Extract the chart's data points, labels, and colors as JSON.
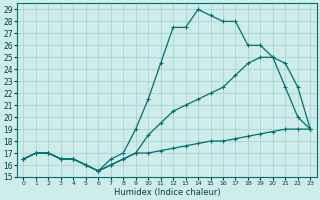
{
  "title": "",
  "xlabel": "Humidex (Indice chaleur)",
  "bg_color": "#ceecea",
  "grid_color": "#aad4d0",
  "line_color": "#007070",
  "xlim": [
    -0.5,
    23.5
  ],
  "ylim": [
    15,
    29.5
  ],
  "xticks": [
    0,
    1,
    2,
    3,
    4,
    5,
    6,
    7,
    8,
    9,
    10,
    11,
    12,
    13,
    14,
    15,
    16,
    17,
    18,
    19,
    20,
    21,
    22,
    23
  ],
  "yticks": [
    15,
    16,
    17,
    18,
    19,
    20,
    21,
    22,
    23,
    24,
    25,
    26,
    27,
    28,
    29
  ],
  "line1_x": [
    0,
    1,
    2,
    3,
    4,
    5,
    6,
    7,
    8,
    9,
    10,
    11,
    12,
    13,
    14,
    15,
    16,
    17,
    18,
    19,
    20,
    21,
    22,
    23
  ],
  "line1_y": [
    16.5,
    17.0,
    17.0,
    16.5,
    16.5,
    16.0,
    15.5,
    16.5,
    17.0,
    19.0,
    21.5,
    24.5,
    27.5,
    27.5,
    29.0,
    28.5,
    28.0,
    28.0,
    26.0,
    26.0,
    25.0,
    22.5,
    20.0,
    19.0
  ],
  "line2_x": [
    0,
    1,
    2,
    3,
    4,
    5,
    6,
    7,
    8,
    9,
    10,
    11,
    12,
    13,
    14,
    15,
    16,
    17,
    18,
    19,
    20,
    21,
    22,
    23
  ],
  "line2_y": [
    16.5,
    17.0,
    17.0,
    16.5,
    16.5,
    16.0,
    15.5,
    16.0,
    16.5,
    17.0,
    18.5,
    19.5,
    20.5,
    21.0,
    21.5,
    22.0,
    22.5,
    23.5,
    24.5,
    25.0,
    25.0,
    24.5,
    22.5,
    19.0
  ],
  "line3_x": [
    0,
    1,
    2,
    3,
    4,
    5,
    6,
    7,
    8,
    9,
    10,
    11,
    12,
    13,
    14,
    15,
    16,
    17,
    18,
    19,
    20,
    21,
    22,
    23
  ],
  "line3_y": [
    16.5,
    17.0,
    17.0,
    16.5,
    16.5,
    16.0,
    15.5,
    16.0,
    16.5,
    17.0,
    17.0,
    17.2,
    17.4,
    17.6,
    17.8,
    18.0,
    18.0,
    18.2,
    18.4,
    18.6,
    18.8,
    19.0,
    19.0,
    19.0
  ]
}
